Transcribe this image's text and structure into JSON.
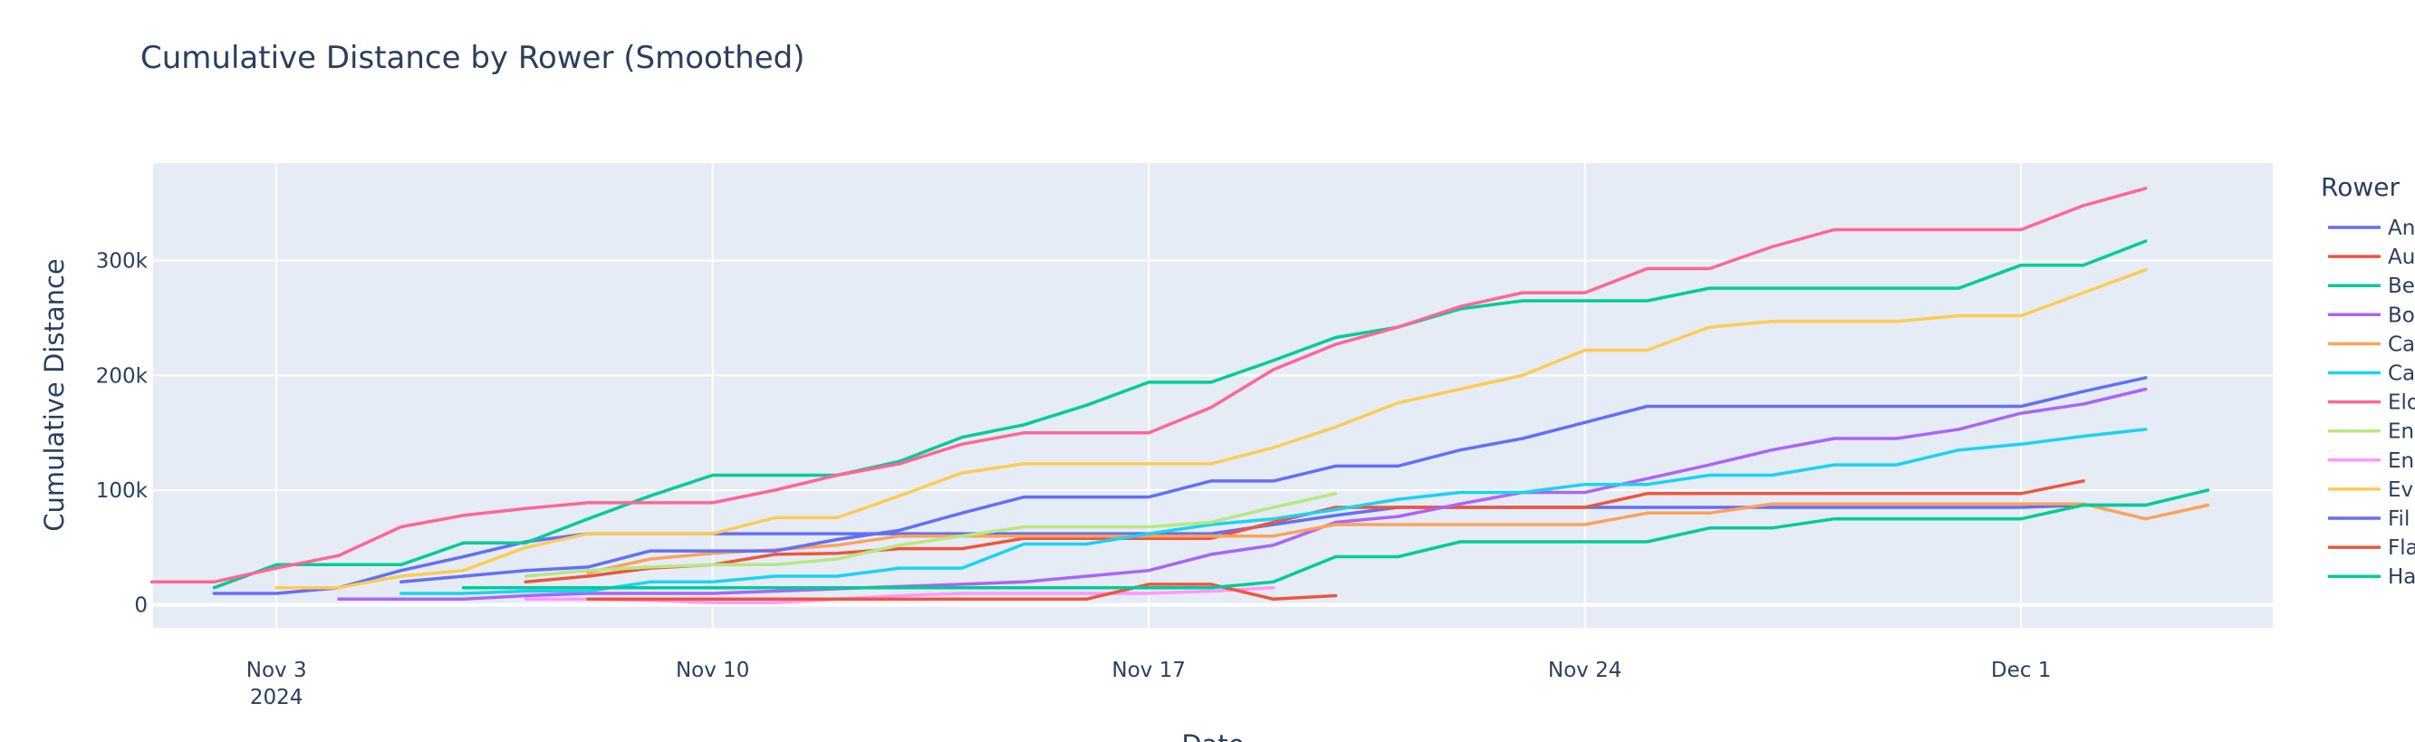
{
  "chart_data": {
    "type": "line",
    "title": "Cumulative Distance by Rower (Smoothed)",
    "xlabel": "Date",
    "ylabel": "Cumulative Distance",
    "ylim": [
      -20000,
      385000
    ],
    "grid": true,
    "legend_title": "Rower",
    "legend_position": "right",
    "x_ticks": [
      {
        "date": "2024-11-03",
        "label": "Nov 3",
        "sublabel": "2024"
      },
      {
        "date": "2024-11-10",
        "label": "Nov 10",
        "sublabel": ""
      },
      {
        "date": "2024-11-17",
        "label": "Nov 17",
        "sublabel": ""
      },
      {
        "date": "2024-11-24",
        "label": "Nov 24",
        "sublabel": ""
      },
      {
        "date": "2024-12-01",
        "label": "Dec 1",
        "sublabel": ""
      }
    ],
    "y_ticks": [
      {
        "value": 0,
        "label": "0"
      },
      {
        "value": 100000,
        "label": "100k"
      },
      {
        "value": 200000,
        "label": "200k"
      },
      {
        "value": 300000,
        "label": "300k"
      }
    ],
    "series": [
      {
        "name": "An",
        "color": "#636efa",
        "dates": [
          "2024-11-02",
          "2024-11-03",
          "2024-11-04",
          "2024-11-05",
          "2024-11-06",
          "2024-11-07",
          "2024-11-08",
          "2024-11-09",
          "2024-11-10",
          "2024-11-11",
          "2024-11-12",
          "2024-11-13",
          "2024-11-14",
          "2024-11-15",
          "2024-11-16",
          "2024-11-17",
          "2024-11-18",
          "2024-11-19",
          "2024-11-20",
          "2024-11-21",
          "2024-11-22",
          "2024-11-23",
          "2024-11-24",
          "2024-11-25",
          "2024-11-26",
          "2024-11-27",
          "2024-11-28",
          "2024-11-29",
          "2024-11-30",
          "2024-12-01",
          "2024-12-02",
          "2024-12-03"
        ],
        "values": [
          10000,
          10000,
          15000,
          30000,
          42000,
          55000,
          62000,
          62000,
          62000,
          62000,
          62000,
          62000,
          62000,
          62000,
          62000,
          62000,
          62000,
          70000,
          78000,
          85000,
          85000,
          85000,
          85000,
          85000,
          85000,
          85000,
          85000,
          85000,
          85000,
          85000,
          87000,
          87000
        ]
      },
      {
        "name": "Au",
        "color": "#EF553B",
        "dates": [
          "2024-11-07",
          "2024-11-08",
          "2024-11-09",
          "2024-11-10",
          "2024-11-11",
          "2024-11-12",
          "2024-11-13",
          "2024-11-14",
          "2024-11-15",
          "2024-11-16",
          "2024-11-17",
          "2024-11-18",
          "2024-11-19",
          "2024-11-20",
          "2024-11-21",
          "2024-11-22",
          "2024-11-23",
          "2024-11-24",
          "2024-11-25",
          "2024-11-26",
          "2024-11-27",
          "2024-11-28",
          "2024-11-29",
          "2024-11-30",
          "2024-12-01",
          "2024-12-02"
        ],
        "values": [
          20000,
          25000,
          32000,
          35000,
          44000,
          45000,
          49000,
          49000,
          58000,
          58000,
          58000,
          58000,
          72000,
          85000,
          85000,
          85000,
          85000,
          85000,
          97000,
          97000,
          97000,
          97000,
          97000,
          97000,
          97000,
          108000
        ]
      },
      {
        "name": "Be",
        "color": "#00cc96",
        "dates": [
          "2024-11-02",
          "2024-11-03",
          "2024-11-04",
          "2024-11-05",
          "2024-11-06",
          "2024-11-07",
          "2024-11-08",
          "2024-11-09",
          "2024-11-10",
          "2024-11-11",
          "2024-11-12",
          "2024-11-13",
          "2024-11-14",
          "2024-11-15",
          "2024-11-16",
          "2024-11-17",
          "2024-11-18",
          "2024-11-19",
          "2024-11-20",
          "2024-11-21",
          "2024-11-22",
          "2024-11-23",
          "2024-11-24",
          "2024-11-25",
          "2024-11-26",
          "2024-11-27",
          "2024-11-28",
          "2024-11-29",
          "2024-11-30",
          "2024-12-01",
          "2024-12-02",
          "2024-12-03"
        ],
        "values": [
          15000,
          35000,
          35000,
          35000,
          54000,
          54000,
          75000,
          95000,
          113000,
          113000,
          113000,
          125000,
          146000,
          157000,
          174000,
          194000,
          194000,
          213000,
          233000,
          242000,
          258000,
          265000,
          265000,
          265000,
          276000,
          276000,
          276000,
          276000,
          276000,
          296000,
          296000,
          317000
        ]
      },
      {
        "name": "Bo",
        "color": "#ab63fa",
        "dates": [
          "2024-11-04",
          "2024-11-05",
          "2024-11-06",
          "2024-11-07",
          "2024-11-08",
          "2024-11-09",
          "2024-11-10",
          "2024-11-11",
          "2024-11-12",
          "2024-11-13",
          "2024-11-14",
          "2024-11-15",
          "2024-11-16",
          "2024-11-17",
          "2024-11-18",
          "2024-11-19",
          "2024-11-20",
          "2024-11-21",
          "2024-11-22",
          "2024-11-23",
          "2024-11-24",
          "2024-11-25",
          "2024-11-26",
          "2024-11-27",
          "2024-11-28",
          "2024-11-29",
          "2024-11-30",
          "2024-12-01",
          "2024-12-02",
          "2024-12-03"
        ],
        "values": [
          5000,
          5000,
          5000,
          8000,
          10000,
          10000,
          10000,
          12000,
          14000,
          16000,
          18000,
          20000,
          25000,
          30000,
          44000,
          52000,
          72000,
          77000,
          88000,
          98000,
          98000,
          110000,
          122000,
          135000,
          145000,
          145000,
          153000,
          167000,
          175000,
          188000
        ]
      },
      {
        "name": "Ca",
        "color": "#FFA15A",
        "dates": [
          "2024-11-08",
          "2024-11-09",
          "2024-11-10",
          "2024-11-11",
          "2024-11-12",
          "2024-11-13",
          "2024-11-14",
          "2024-11-15",
          "2024-11-16",
          "2024-11-17",
          "2024-11-18",
          "2024-11-19",
          "2024-11-20",
          "2024-11-21",
          "2024-11-22",
          "2024-11-23",
          "2024-11-24",
          "2024-11-25",
          "2024-11-26",
          "2024-11-27",
          "2024-11-28",
          "2024-11-29",
          "2024-11-30",
          "2024-12-01",
          "2024-12-02",
          "2024-12-03",
          "2024-12-04"
        ],
        "values": [
          28000,
          40000,
          45000,
          48000,
          52000,
          60000,
          60000,
          60000,
          60000,
          60000,
          60000,
          60000,
          70000,
          70000,
          70000,
          70000,
          70000,
          80000,
          80000,
          88000,
          88000,
          88000,
          88000,
          88000,
          88000,
          75000,
          87000
        ]
      },
      {
        "name": "Ca",
        "color": "#19d3f3",
        "dates": [
          "2024-11-05",
          "2024-11-06",
          "2024-11-07",
          "2024-11-08",
          "2024-11-09",
          "2024-11-10",
          "2024-11-11",
          "2024-11-12",
          "2024-11-13",
          "2024-11-14",
          "2024-11-15",
          "2024-11-16",
          "2024-11-17",
          "2024-11-18",
          "2024-11-19",
          "2024-11-20",
          "2024-11-21",
          "2024-11-22",
          "2024-11-23",
          "2024-11-24",
          "2024-11-25",
          "2024-11-26",
          "2024-11-27",
          "2024-11-28",
          "2024-11-29",
          "2024-11-30",
          "2024-12-01",
          "2024-12-02",
          "2024-12-03"
        ],
        "values": [
          10000,
          10000,
          12000,
          12000,
          20000,
          20000,
          25000,
          25000,
          32000,
          32000,
          53000,
          53000,
          62000,
          70000,
          75000,
          83000,
          92000,
          98000,
          98000,
          105000,
          105000,
          113000,
          113000,
          122000,
          122000,
          135000,
          140000,
          147000,
          153000
        ]
      },
      {
        "name": "Elo",
        "color": "#FF6692",
        "dates": [
          "2024-11-01",
          "2024-11-02",
          "2024-11-03",
          "2024-11-04",
          "2024-11-05",
          "2024-11-06",
          "2024-11-07",
          "2024-11-08",
          "2024-11-09",
          "2024-11-10",
          "2024-11-11",
          "2024-11-12",
          "2024-11-13",
          "2024-11-14",
          "2024-11-15",
          "2024-11-16",
          "2024-11-17",
          "2024-11-18",
          "2024-11-19",
          "2024-11-20",
          "2024-11-21",
          "2024-11-22",
          "2024-11-23",
          "2024-11-24",
          "2024-11-25",
          "2024-11-26",
          "2024-11-27",
          "2024-11-28",
          "2024-11-29",
          "2024-11-30",
          "2024-12-01",
          "2024-12-02",
          "2024-12-03"
        ],
        "values": [
          20000,
          20000,
          32000,
          43000,
          68000,
          78000,
          84000,
          89000,
          89000,
          89000,
          100000,
          113000,
          123000,
          140000,
          150000,
          150000,
          150000,
          172000,
          205000,
          227000,
          242000,
          260000,
          272000,
          272000,
          293000,
          293000,
          312000,
          327000,
          327000,
          327000,
          327000,
          348000,
          363000
        ]
      },
      {
        "name": "En",
        "color": "#B6E880",
        "dates": [
          "2024-11-07",
          "2024-11-08",
          "2024-11-09",
          "2024-11-10",
          "2024-11-11",
          "2024-11-12",
          "2024-11-13",
          "2024-11-14",
          "2024-11-15",
          "2024-11-16",
          "2024-11-17",
          "2024-11-18",
          "2024-11-19",
          "2024-11-20"
        ],
        "values": [
          25000,
          30000,
          33000,
          35000,
          35000,
          40000,
          52000,
          60000,
          68000,
          68000,
          68000,
          72000,
          85000,
          97000
        ]
      },
      {
        "name": "En",
        "color": "#FF97FF",
        "dates": [
          "2024-11-07",
          "2024-11-08",
          "2024-11-09",
          "2024-11-10",
          "2024-11-11",
          "2024-11-12",
          "2024-11-13",
          "2024-11-14",
          "2024-11-15",
          "2024-11-16",
          "2024-11-17",
          "2024-11-18",
          "2024-11-19"
        ],
        "values": [
          5000,
          5000,
          4000,
          2000,
          2000,
          5000,
          8000,
          10000,
          10000,
          10000,
          10000,
          12000,
          15000
        ]
      },
      {
        "name": "Ev",
        "color": "#FECB52",
        "dates": [
          "2024-11-03",
          "2024-11-04",
          "2024-11-05",
          "2024-11-06",
          "2024-11-07",
          "2024-11-08",
          "2024-11-09",
          "2024-11-10",
          "2024-11-11",
          "2024-11-12",
          "2024-11-13",
          "2024-11-14",
          "2024-11-15",
          "2024-11-16",
          "2024-11-17",
          "2024-11-18",
          "2024-11-19",
          "2024-11-20",
          "2024-11-21",
          "2024-11-22",
          "2024-11-23",
          "2024-11-24",
          "2024-11-25",
          "2024-11-26",
          "2024-11-27",
          "2024-11-28",
          "2024-11-29",
          "2024-11-30",
          "2024-12-01",
          "2024-12-02",
          "2024-12-03"
        ],
        "values": [
          15000,
          15000,
          25000,
          30000,
          50000,
          62000,
          62000,
          62000,
          76000,
          76000,
          95000,
          115000,
          123000,
          123000,
          123000,
          123000,
          137000,
          155000,
          176000,
          188000,
          200000,
          222000,
          222000,
          242000,
          247000,
          247000,
          247000,
          252000,
          252000,
          272000,
          292000
        ]
      },
      {
        "name": "Fil",
        "color": "#636efa",
        "dates": [
          "2024-11-05",
          "2024-11-06",
          "2024-11-07",
          "2024-11-08",
          "2024-11-09",
          "2024-11-10",
          "2024-11-11",
          "2024-11-12",
          "2024-11-13",
          "2024-11-14",
          "2024-11-15",
          "2024-11-16",
          "2024-11-17",
          "2024-11-18",
          "2024-11-19",
          "2024-11-20",
          "2024-11-21",
          "2024-11-22",
          "2024-11-23",
          "2024-11-24",
          "2024-11-25",
          "2024-11-26",
          "2024-11-27",
          "2024-11-28",
          "2024-11-29",
          "2024-11-30",
          "2024-12-01",
          "2024-12-02",
          "2024-12-03"
        ],
        "values": [
          20000,
          25000,
          30000,
          33000,
          47000,
          47000,
          47000,
          57000,
          65000,
          80000,
          94000,
          94000,
          94000,
          108000,
          108000,
          121000,
          121000,
          135000,
          145000,
          159000,
          173000,
          173000,
          173000,
          173000,
          173000,
          173000,
          173000,
          186000,
          198000
        ]
      },
      {
        "name": "Fla",
        "color": "#EF553B",
        "dates": [
          "2024-11-08",
          "2024-11-09",
          "2024-11-10",
          "2024-11-11",
          "2024-11-12",
          "2024-11-13",
          "2024-11-14",
          "2024-11-15",
          "2024-11-16",
          "2024-11-17",
          "2024-11-18",
          "2024-11-19",
          "2024-11-20"
        ],
        "values": [
          5000,
          5000,
          5000,
          5000,
          5000,
          5000,
          5000,
          5000,
          5000,
          18000,
          18000,
          5000,
          8000
        ]
      },
      {
        "name": "Ha",
        "color": "#00cc96",
        "dates": [
          "2024-11-06",
          "2024-11-07",
          "2024-11-08",
          "2024-11-09",
          "2024-11-10",
          "2024-11-11",
          "2024-11-12",
          "2024-11-13",
          "2024-11-14",
          "2024-11-15",
          "2024-11-16",
          "2024-11-17",
          "2024-11-18",
          "2024-11-19",
          "2024-11-20",
          "2024-11-21",
          "2024-11-22",
          "2024-11-23",
          "2024-11-24",
          "2024-11-25",
          "2024-11-26",
          "2024-11-27",
          "2024-11-28",
          "2024-11-29",
          "2024-11-30",
          "2024-12-01",
          "2024-12-02",
          "2024-12-03",
          "2024-12-04"
        ],
        "values": [
          15000,
          15000,
          15000,
          15000,
          15000,
          15000,
          15000,
          15000,
          15000,
          15000,
          15000,
          15000,
          15000,
          20000,
          42000,
          42000,
          55000,
          55000,
          55000,
          55000,
          67000,
          67000,
          75000,
          75000,
          75000,
          75000,
          87000,
          87000,
          100000
        ]
      }
    ]
  }
}
